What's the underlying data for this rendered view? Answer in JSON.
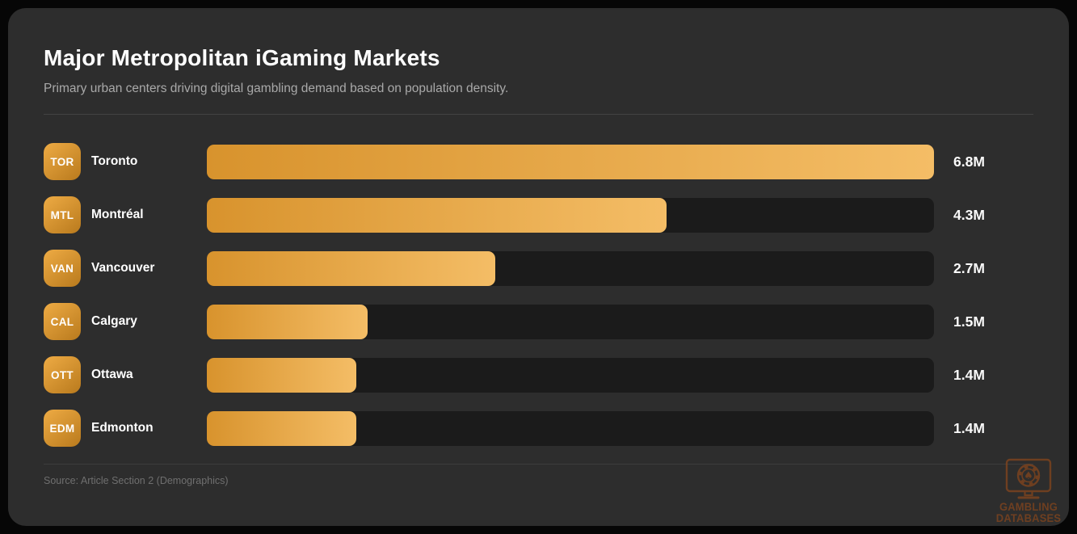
{
  "page": {
    "background": "#060606",
    "card_background": "#2d2d2d"
  },
  "header": {
    "title": "Major Metropolitan iGaming Markets",
    "subtitle": "Primary urban centers driving digital gambling demand based on population density."
  },
  "chart_data": {
    "type": "bar",
    "orientation": "horizontal",
    "title": "Major Metropolitan iGaming Markets",
    "categories": [
      "Toronto",
      "Montréal",
      "Vancouver",
      "Calgary",
      "Ottawa",
      "Edmonton"
    ],
    "codes": [
      "TOR",
      "MTL",
      "VAN",
      "CAL",
      "OTT",
      "EDM"
    ],
    "values": [
      6.8,
      4.3,
      2.7,
      1.5,
      1.4,
      1.4
    ],
    "value_labels": [
      "6.8M",
      "4.3M",
      "2.7M",
      "1.5M",
      "1.4M",
      "1.4M"
    ],
    "unit": "M (millions of people)",
    "max_value": 6.8,
    "xlim": [
      0,
      6.8
    ],
    "grid": false,
    "legend": false,
    "bar_gradient": [
      "#d8932d",
      "#f4bd66"
    ],
    "badge_gradient": [
      "#eeab44",
      "#b97a1d"
    ],
    "track_color": "#1b1b1b"
  },
  "footer": {
    "source": "Source: Article Section 2 (Demographics)"
  },
  "watermark": {
    "line1": "GAMBLING",
    "line2": "DATABASES",
    "icon": "monitor-with-casino-chip-spade-icon",
    "color": "#7b431f"
  }
}
